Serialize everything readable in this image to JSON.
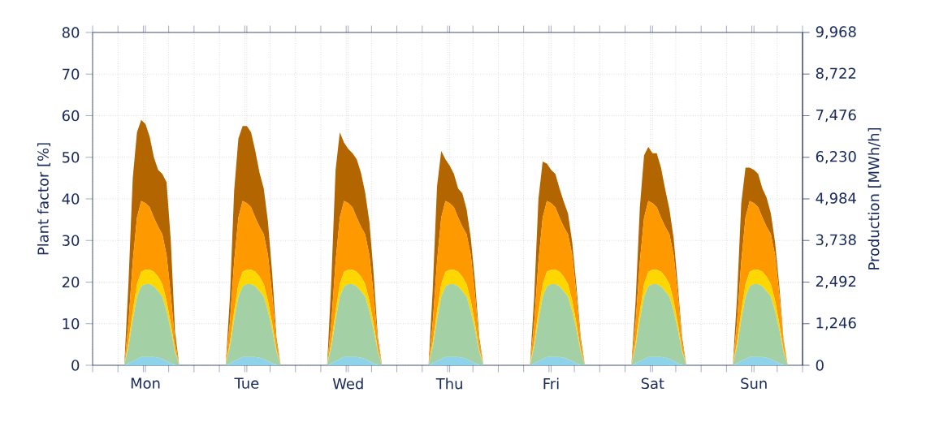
{
  "chart_data": {
    "type": "area",
    "stacked": true,
    "ylabel": "Plant factor [%]",
    "y2label": "Production [MWh/h]",
    "categories": [
      null,
      null,
      null,
      null,
      null,
      null,
      null,
      null,
      null,
      null,
      null,
      null,
      "Mon",
      null,
      null,
      null,
      null,
      null,
      null,
      null,
      null,
      null,
      null,
      null,
      null,
      null,
      null,
      null,
      null,
      null,
      null,
      null,
      null,
      null,
      null,
      null,
      "Tue",
      null,
      null,
      null,
      null,
      null,
      null,
      null,
      null,
      null,
      null,
      null,
      null,
      null,
      null,
      null,
      null,
      null,
      null,
      null,
      null,
      null,
      null,
      null,
      "Wed",
      null,
      null,
      null,
      null,
      null,
      null,
      null,
      null,
      null,
      null,
      null,
      null,
      null,
      null,
      null,
      null,
      null,
      null,
      null,
      null,
      null,
      null,
      null,
      "Thu",
      null,
      null,
      null,
      null,
      null,
      null,
      null,
      null,
      null,
      null,
      null,
      null,
      null,
      null,
      null,
      null,
      null,
      null,
      null,
      null,
      null,
      null,
      null,
      "Fri",
      null,
      null,
      null,
      null,
      null,
      null,
      null,
      null,
      null,
      null,
      null,
      null,
      null,
      null,
      null,
      null,
      null,
      null,
      null,
      null,
      null,
      null,
      null,
      "Sat",
      null,
      null,
      null,
      null,
      null,
      null,
      null,
      null,
      null,
      null,
      null,
      null,
      null,
      null,
      null,
      null,
      null,
      null,
      null,
      null,
      null,
      null,
      null,
      "Sun",
      null,
      null,
      null,
      null,
      null,
      null,
      null,
      null,
      null,
      null,
      null
    ],
    "series": [
      {
        "color": "#8fd3ea",
        "values": [
          0,
          0,
          0,
          0,
          0,
          0,
          0,
          0,
          0.5,
          1,
          1.5,
          2,
          2,
          2,
          2,
          1.8,
          1.5,
          1,
          0.5,
          0.2,
          0,
          0,
          0,
          0,
          0,
          0,
          0,
          0,
          0,
          0,
          0,
          0,
          0.5,
          1,
          1.5,
          2,
          2,
          2,
          2,
          1.8,
          1.5,
          1,
          0.5,
          0.2,
          0,
          0,
          0,
          0,
          0,
          0,
          0,
          0,
          0,
          0,
          0,
          0,
          0.5,
          1,
          1.5,
          2,
          2,
          2,
          2,
          1.8,
          1.5,
          1,
          0.5,
          0.2,
          0,
          0,
          0,
          0,
          0,
          0,
          0,
          0,
          0,
          0,
          0,
          0,
          0.5,
          1,
          1.5,
          2,
          2,
          2,
          2,
          1.8,
          1.5,
          1,
          0.5,
          0.2,
          0,
          0,
          0,
          0,
          0,
          0,
          0,
          0,
          0,
          0,
          0,
          0,
          0.5,
          1,
          1.5,
          2,
          2,
          2,
          2,
          1.8,
          1.5,
          1,
          0.5,
          0.2,
          0,
          0,
          0,
          0,
          0,
          0,
          0,
          0,
          0,
          0,
          0,
          0,
          0.5,
          1,
          1.5,
          2,
          2,
          2,
          2,
          1.8,
          1.5,
          1,
          0.5,
          0.2,
          0,
          0,
          0,
          0,
          0,
          0,
          0,
          0,
          0,
          0,
          0,
          0,
          0.5,
          1,
          1.5,
          2,
          2,
          2,
          2,
          1.8,
          1.5,
          1,
          0.5,
          0.2,
          0,
          0,
          0,
          0
        ]
      },
      {
        "color": "#a3d0a4",
        "values": [
          0,
          0,
          0,
          0,
          0,
          0,
          0,
          0,
          4,
          10,
          15,
          17,
          17.5,
          17.5,
          17,
          16,
          15,
          12,
          8,
          3,
          0,
          0,
          0,
          0,
          0,
          0,
          0,
          0,
          0,
          0,
          0,
          0,
          4,
          10,
          15,
          17,
          17.5,
          17.5,
          17,
          16,
          15,
          12,
          8,
          3,
          0,
          0,
          0,
          0,
          0,
          0,
          0,
          0,
          0,
          0,
          0,
          0,
          4,
          10,
          15,
          17,
          17.5,
          17.5,
          17,
          16,
          15,
          12,
          8,
          3,
          0,
          0,
          0,
          0,
          0,
          0,
          0,
          0,
          0,
          0,
          0,
          0,
          4,
          10,
          15,
          17,
          17.5,
          17.5,
          17,
          16,
          15,
          12,
          8,
          3,
          0,
          0,
          0,
          0,
          0,
          0,
          0,
          0,
          0,
          0,
          0,
          0,
          4,
          10,
          15,
          17,
          17.5,
          17.5,
          17,
          16,
          15,
          12,
          8,
          3,
          0,
          0,
          0,
          0,
          0,
          0,
          0,
          0,
          0,
          0,
          0,
          0,
          4,
          10,
          15,
          17,
          17.5,
          17.5,
          17,
          16,
          15,
          12,
          8,
          3,
          0,
          0,
          0,
          0,
          0,
          0,
          0,
          0,
          0,
          0,
          0,
          0,
          4,
          10,
          15,
          17,
          17.5,
          17.5,
          17,
          16,
          15,
          12,
          8,
          3,
          0,
          0,
          0,
          0
        ]
      },
      {
        "color": "#ffd700",
        "values": [
          0,
          0,
          0,
          0,
          0,
          0,
          0,
          0,
          1,
          2,
          3,
          3.5,
          3.5,
          3.5,
          3.5,
          3.5,
          3,
          2.5,
          1.5,
          0.5,
          0,
          0,
          0,
          0,
          0,
          0,
          0,
          0,
          0,
          0,
          0,
          0,
          1,
          2,
          3,
          3.5,
          3.5,
          3.5,
          3.5,
          3.5,
          3,
          2.5,
          1.5,
          0.5,
          0,
          0,
          0,
          0,
          0,
          0,
          0,
          0,
          0,
          0,
          0,
          0,
          1,
          2,
          3,
          3.5,
          3.5,
          3.5,
          3.5,
          3.5,
          3,
          2.5,
          1.5,
          0.5,
          0,
          0,
          0,
          0,
          0,
          0,
          0,
          0,
          0,
          0,
          0,
          0,
          1,
          2,
          3,
          3.5,
          3.5,
          3.5,
          3.5,
          3.5,
          3,
          2.5,
          1.5,
          0.5,
          0,
          0,
          0,
          0,
          0,
          0,
          0,
          0,
          0,
          0,
          0,
          0,
          1,
          2,
          3,
          3.5,
          3.5,
          3.5,
          3.5,
          3.5,
          3,
          2.5,
          1.5,
          0.5,
          0,
          0,
          0,
          0,
          0,
          0,
          0,
          0,
          0,
          0,
          0,
          0,
          1,
          2,
          3,
          3.5,
          3.5,
          3.5,
          3.5,
          3.5,
          3,
          2.5,
          1.5,
          0.5,
          0,
          0,
          0,
          0,
          0,
          0,
          0,
          0,
          0,
          0,
          0,
          0,
          1,
          2,
          3,
          3.5,
          3.5,
          3.5,
          3.5,
          3.5,
          3,
          2.5,
          1.5,
          0.5,
          0,
          0,
          0,
          0
        ]
      },
      {
        "color": "#ff9900",
        "values": [
          0,
          0,
          0,
          0,
          0,
          0,
          0,
          0,
          5,
          12,
          16,
          17,
          16,
          15,
          13,
          12,
          12,
          11,
          7,
          2,
          0,
          0,
          0,
          0,
          0,
          0,
          0,
          0,
          0,
          0,
          0,
          0,
          5,
          12,
          16,
          17,
          16,
          15,
          13,
          12,
          12,
          11,
          7,
          2,
          0,
          0,
          0,
          0,
          0,
          0,
          0,
          0,
          0,
          0,
          0,
          0,
          5,
          12,
          16,
          17,
          16,
          15,
          13,
          12,
          12,
          11,
          7,
          2,
          0,
          0,
          0,
          0,
          0,
          0,
          0,
          0,
          0,
          0,
          0,
          0,
          5,
          12,
          16,
          17,
          16,
          15,
          13,
          12,
          12,
          11,
          7,
          2,
          0,
          0,
          0,
          0,
          0,
          0,
          0,
          0,
          0,
          0,
          0,
          0,
          5,
          12,
          16,
          17,
          16,
          15,
          13,
          12,
          12,
          11,
          7,
          2,
          0,
          0,
          0,
          0,
          0,
          0,
          0,
          0,
          0,
          0,
          0,
          0,
          5,
          12,
          16,
          17,
          16,
          15,
          13,
          12,
          12,
          11,
          7,
          2,
          0,
          0,
          0,
          0,
          0,
          0,
          0,
          0,
          0,
          0,
          0,
          0,
          5,
          12,
          16,
          17,
          16,
          15,
          13,
          12,
          12,
          11,
          7,
          2,
          0,
          0,
          0,
          0
        ]
      },
      {
        "color": "#b36600",
        "values": [
          0,
          0,
          0,
          0,
          0,
          0,
          0,
          0,
          9.5,
          20,
          20.5,
          19.5,
          19,
          17,
          14.5,
          13.7,
          14.5,
          17.5,
          13,
          2.3,
          0,
          0,
          0,
          0,
          0,
          0,
          0,
          0,
          0,
          0,
          0,
          0,
          6,
          17,
          19,
          18,
          18.5,
          18,
          16,
          13,
          11,
          8,
          5,
          1,
          0,
          0,
          0,
          0,
          0,
          0,
          0,
          0,
          0,
          0,
          0,
          0,
          10,
          22,
          20.5,
          14,
          13,
          13,
          14,
          13,
          10,
          8,
          5,
          1,
          0,
          0,
          0,
          0,
          0,
          0,
          0,
          0,
          0,
          0,
          0,
          0,
          8,
          18,
          16,
          10,
          9,
          8,
          7,
          8,
          6,
          4,
          3,
          1,
          0,
          0,
          0,
          0,
          0,
          0,
          0,
          0,
          0,
          0,
          0,
          0,
          6,
          15,
          13.5,
          9,
          8,
          8,
          7,
          6,
          5,
          3,
          2,
          1,
          0,
          0,
          0,
          0,
          0,
          0,
          0,
          0,
          0,
          0,
          0,
          0,
          5,
          13,
          15,
          13,
          12,
          13,
          12,
          9,
          6,
          4,
          2,
          1,
          0,
          0,
          0,
          0,
          0,
          0,
          0,
          0,
          0,
          0,
          0,
          0,
          6,
          14,
          12,
          8,
          8,
          8,
          7,
          7,
          5,
          3,
          2,
          0.5,
          0,
          0,
          0,
          0
        ]
      }
    ],
    "ylim": [
      0,
      80
    ],
    "yticks": [
      0,
      10,
      20,
      30,
      40,
      50,
      60,
      70,
      80
    ],
    "y2lim": [
      0,
      9968
    ],
    "y2ticks": [
      0,
      {
        "value": 1246,
        "label": "1,246"
      },
      {
        "value": 2492,
        "label": "2,492"
      },
      {
        "value": 3738,
        "label": "3,738"
      },
      {
        "value": 4984,
        "label": "4,984"
      },
      {
        "value": 6230,
        "label": "6,230"
      },
      {
        "value": 7476,
        "label": "7,476"
      },
      {
        "value": 8722,
        "label": "8,722"
      },
      {
        "value": 9968,
        "label": "9,968"
      }
    ],
    "grid": true
  }
}
